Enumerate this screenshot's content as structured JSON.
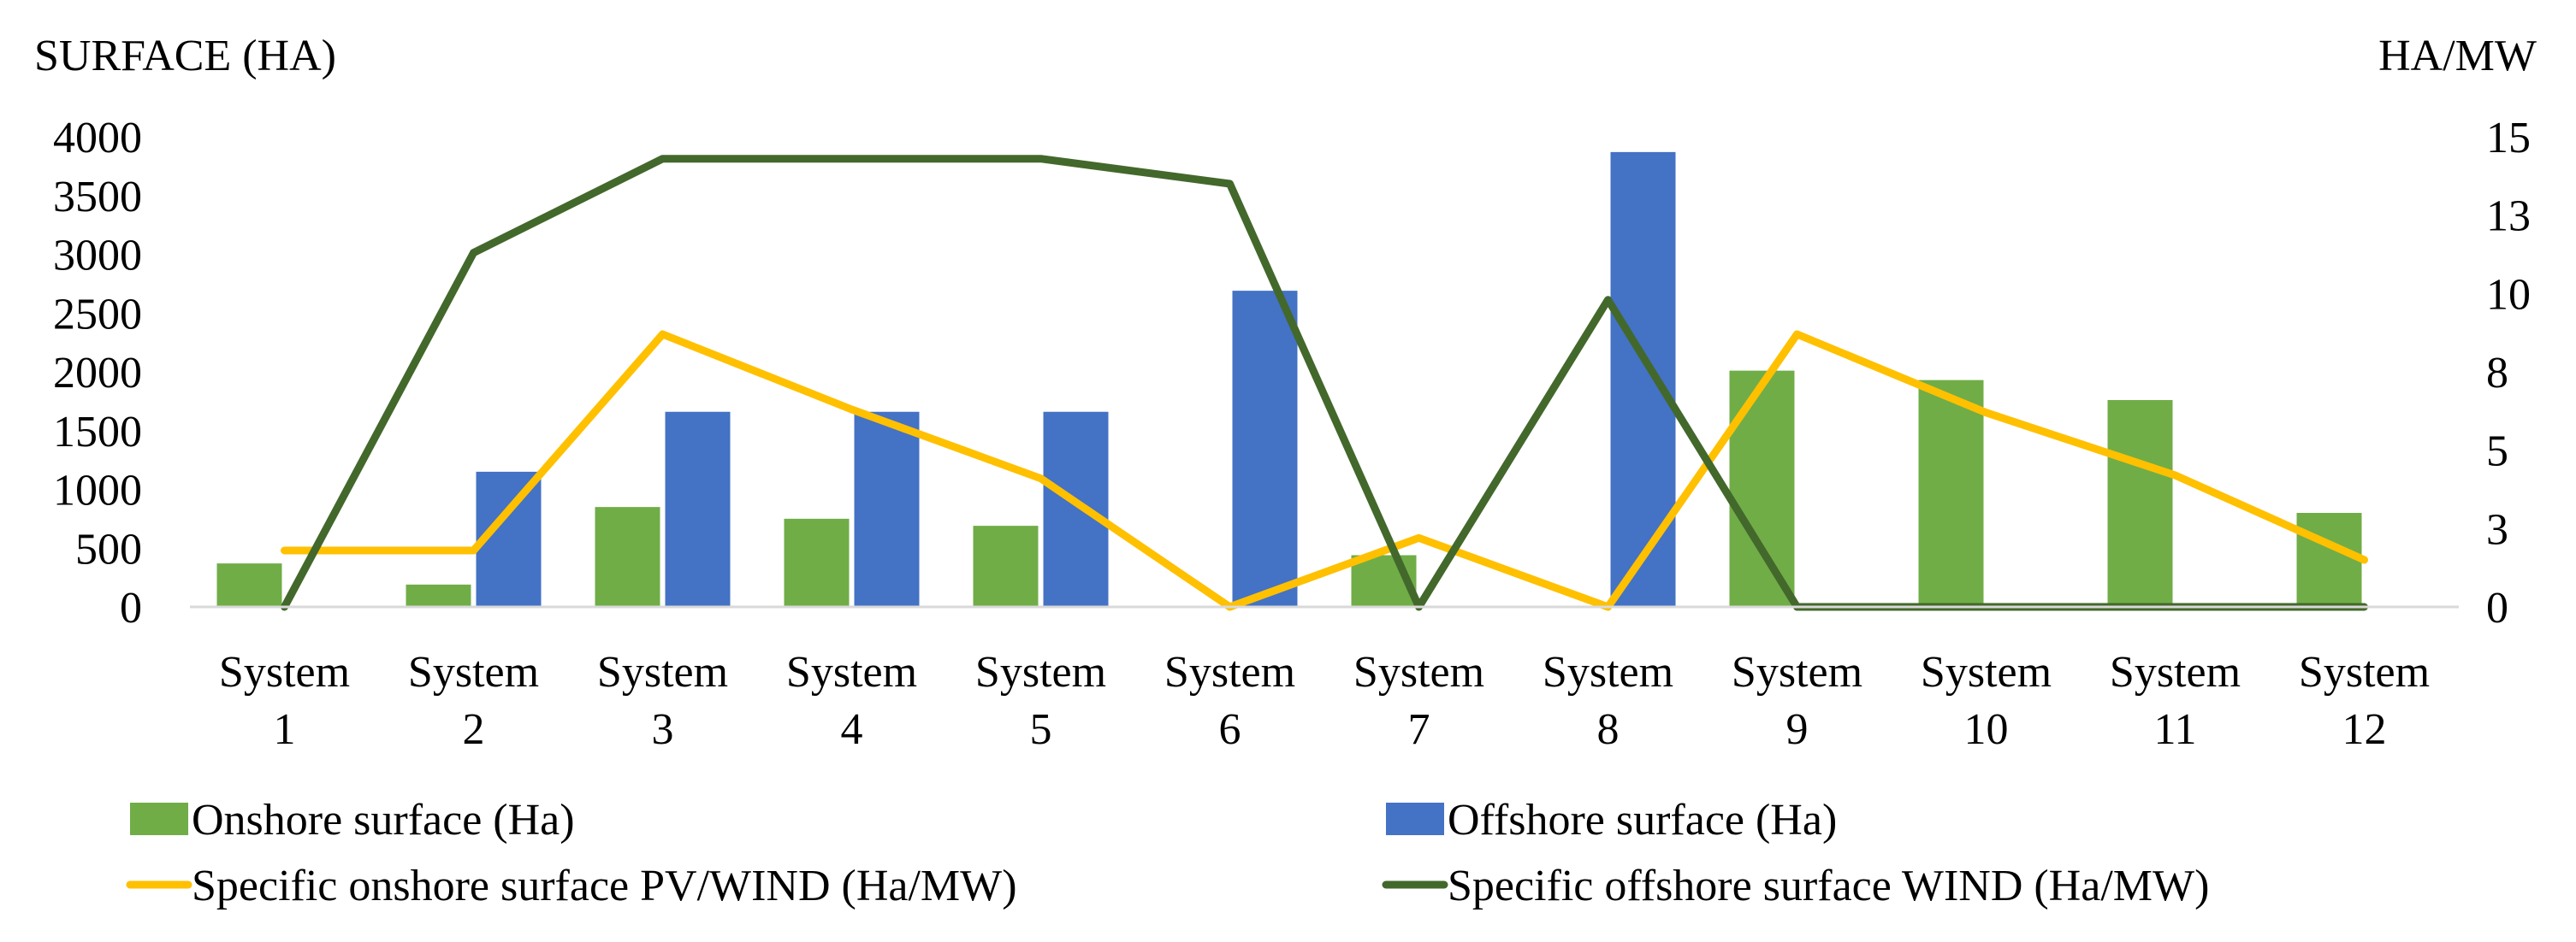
{
  "chart_data": {
    "type": "bar+line",
    "categories": [
      [
        "System",
        "1"
      ],
      [
        "System",
        "2"
      ],
      [
        "System",
        "3"
      ],
      [
        "System",
        "4"
      ],
      [
        "System",
        "5"
      ],
      [
        "System",
        "6"
      ],
      [
        "System",
        "7"
      ],
      [
        "System",
        "8"
      ],
      [
        "System",
        "9"
      ],
      [
        "System",
        "10"
      ],
      [
        "System",
        "11"
      ],
      [
        "System",
        "12"
      ]
    ],
    "left_axis": {
      "title": "SURFACE (HA)",
      "ylim": [
        0,
        4000
      ],
      "ticks": [
        "0",
        "500",
        "1000",
        "1500",
        "2000",
        "2500",
        "3000",
        "3500",
        "4000"
      ]
    },
    "right_axis": {
      "title": "HA/MW",
      "ylim": [
        0,
        15
      ],
      "ticks": [
        {
          "value": 0,
          "label": "0"
        },
        {
          "value": 2.5,
          "label": "3"
        },
        {
          "value": 5,
          "label": "5"
        },
        {
          "value": 7.5,
          "label": "8"
        },
        {
          "value": 10,
          "label": "10"
        },
        {
          "value": 12.5,
          "label": "13"
        },
        {
          "value": 15,
          "label": "15"
        }
      ]
    },
    "bar_series": [
      {
        "name": "Onshore surface (Ha)",
        "color": "#70AD47",
        "values": [
          370,
          190,
          850,
          750,
          690,
          0,
          440,
          0,
          2010,
          1930,
          1760,
          800
        ]
      },
      {
        "name": "Offshore surface (Ha)",
        "color": "#4472C4",
        "values": [
          0,
          1150,
          1660,
          1660,
          1660,
          2690,
          0,
          3870,
          0,
          0,
          0,
          0
        ]
      }
    ],
    "line_series": [
      {
        "name": "Specific onshore surface PV/WIND (Ha/MW)",
        "color": "#FFC000",
        "values": [
          1.8,
          1.8,
          8.7,
          6.3,
          4.1,
          0,
          2.2,
          0,
          8.7,
          6.2,
          4.2,
          1.5
        ]
      },
      {
        "name": "Specific offshore surface WIND (Ha/MW)",
        "color": "#43682B",
        "values": [
          0,
          11.3,
          14.3,
          14.3,
          14.3,
          13.5,
          0,
          9.8,
          0,
          0,
          0,
          0
        ]
      }
    ],
    "legend": [
      {
        "name": "Onshore surface (Ha)",
        "kind": "bar",
        "color": "#70AD47"
      },
      {
        "name": "Offshore surface (Ha)",
        "kind": "bar",
        "color": "#4472C4"
      },
      {
        "name": "Specific onshore surface PV/WIND (Ha/MW)",
        "kind": "line",
        "color": "#FFC000"
      },
      {
        "name": "Specific offshore surface WIND (Ha/MW)",
        "kind": "line",
        "color": "#43682B"
      }
    ]
  }
}
